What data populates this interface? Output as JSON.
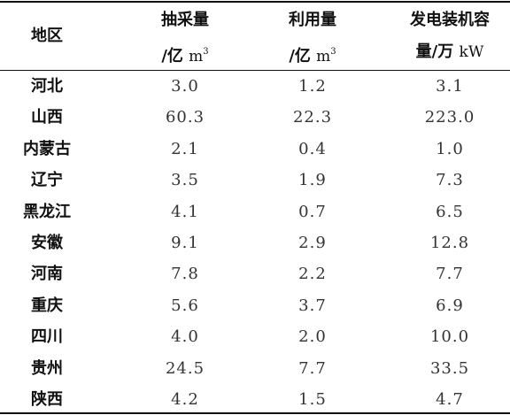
{
  "table": {
    "headers": {
      "region": "地区",
      "extraction_line1": "抽采量",
      "extraction_prefix": "/亿",
      "extraction_unit": "m",
      "extraction_sup": "3",
      "utilization_line1": "利用量",
      "utilization_prefix": "/亿",
      "utilization_unit": "m",
      "utilization_sup": "3",
      "capacity_line1": "发电装机容",
      "capacity_prefix": "量/万",
      "capacity_unit": "kW"
    },
    "rows": [
      {
        "region": "河北",
        "extraction": "3.0",
        "utilization": "1.2",
        "capacity": "3.1"
      },
      {
        "region": "山西",
        "extraction": "60.3",
        "utilization": "22.3",
        "capacity": "223.0"
      },
      {
        "region": "内蒙古",
        "extraction": "2.1",
        "utilization": "0.4",
        "capacity": "1.0"
      },
      {
        "region": "辽宁",
        "extraction": "3.5",
        "utilization": "1.9",
        "capacity": "7.3"
      },
      {
        "region": "黑龙江",
        "extraction": "4.1",
        "utilization": "0.7",
        "capacity": "6.5"
      },
      {
        "region": "安徽",
        "extraction": "9.1",
        "utilization": "2.9",
        "capacity": "12.8"
      },
      {
        "region": "河南",
        "extraction": "7.8",
        "utilization": "2.2",
        "capacity": "7.7"
      },
      {
        "region": "重庆",
        "extraction": "5.6",
        "utilization": "3.7",
        "capacity": "6.9"
      },
      {
        "region": "四川",
        "extraction": "4.0",
        "utilization": "2.0",
        "capacity": "10.0"
      },
      {
        "region": "贵州",
        "extraction": "24.5",
        "utilization": "7.7",
        "capacity": "33.5"
      },
      {
        "region": "陕西",
        "extraction": "4.2",
        "utilization": "1.5",
        "capacity": "4.7"
      }
    ]
  }
}
